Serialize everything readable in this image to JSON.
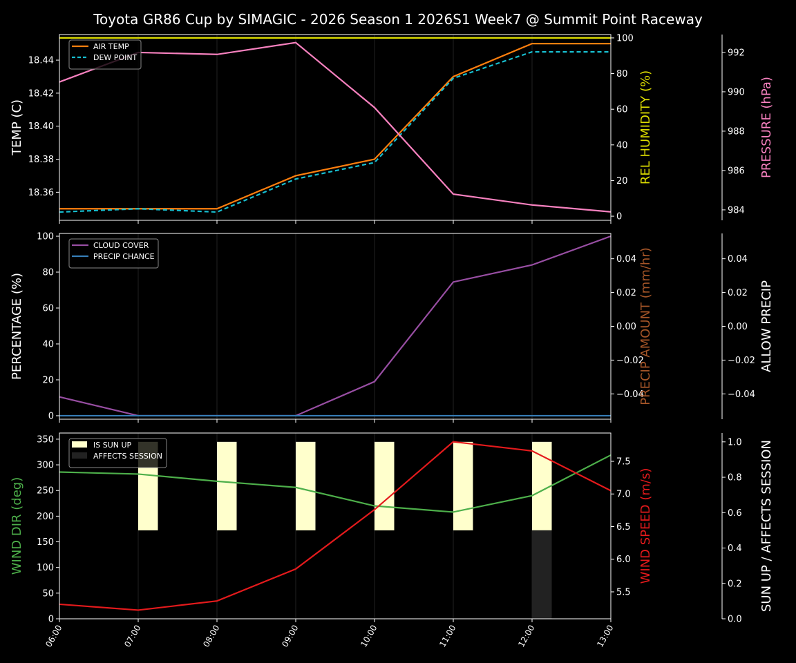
{
  "title": "Toyota GR86 Cup by SIMAGIC - 2026 Season 1 2026S1 Week7 @ Summit Point Raceway",
  "colors": {
    "background": "#000000",
    "air_temp": "#ff7f0e",
    "dew_point": "#17becf",
    "humidity": "#dddd00",
    "pressure": "#f781bf",
    "cloud": "#984ea3",
    "precip_chance": "#377eb8",
    "precip_amount_label": "#a65628",
    "wind_dir": "#4daf4a",
    "wind_speed": "#e41a1c",
    "sun_up": "#ffffcc",
    "affects_session": "#222222"
  },
  "chart_data": [
    {
      "type": "line",
      "x": [
        "06:00",
        "07:00",
        "08:00",
        "09:00",
        "10:00",
        "11:00",
        "12:00",
        "13:00"
      ],
      "axes": {
        "left": {
          "label": "TEMP (C)",
          "ylim": [
            18.343,
            18.4555
          ],
          "ticks": [
            18.36,
            18.38,
            18.4,
            18.42,
            18.44
          ],
          "tick_labels": [
            "18.36",
            "18.38",
            "18.40",
            "18.42",
            "18.44"
          ]
        },
        "right1": {
          "label": "REL HUMIDITY (%)",
          "ylim": [
            -2.3,
            101.9
          ],
          "ticks": [
            0,
            20,
            40,
            60,
            80,
            100
          ],
          "tick_labels": [
            "0",
            "20",
            "40",
            "60",
            "80",
            "100"
          ]
        },
        "right2": {
          "label": "PRESSURE (hPa)",
          "ylim": [
            983.47,
            992.91
          ],
          "ticks": [
            984,
            986,
            988,
            990,
            992
          ],
          "tick_labels": [
            "984",
            "986",
            "988",
            "990",
            "992"
          ]
        }
      },
      "series": [
        {
          "name": "AIR TEMP",
          "axis": "left",
          "style": "solid",
          "values": [
            18.35,
            18.35,
            18.35,
            18.37,
            18.38,
            18.43,
            18.45,
            18.45
          ]
        },
        {
          "name": "DEW POINT",
          "axis": "left",
          "style": "dashed",
          "values": [
            18.348,
            18.35,
            18.348,
            18.368,
            18.378,
            18.429,
            18.445,
            18.445
          ]
        },
        {
          "axis": "right1",
          "style": "solid",
          "values": [
            100,
            100,
            100,
            100,
            100,
            100,
            100,
            100
          ]
        },
        {
          "axis": "right2",
          "style": "solid",
          "values": [
            990.5,
            992.0,
            991.9,
            992.5,
            989.2,
            984.8,
            984.25,
            983.9
          ]
        }
      ],
      "legend": "top-left",
      "grid": "vertical"
    },
    {
      "type": "line",
      "x": [
        "06:00",
        "07:00",
        "08:00",
        "09:00",
        "10:00",
        "11:00",
        "12:00",
        "13:00"
      ],
      "axes": {
        "left": {
          "label": "PERCENTAGE (%)",
          "ylim": [
            -1.94,
            101.55
          ],
          "ticks": [
            0,
            20,
            40,
            60,
            80,
            100
          ],
          "tick_labels": [
            "0",
            "20",
            "40",
            "60",
            "80",
            "100"
          ]
        },
        "right1": {
          "label": "PRECIP AMOUNT (mm/hr)",
          "ylim": [
            -0.055,
            0.055
          ],
          "ticks": [
            -0.04,
            -0.02,
            0,
            0.02,
            0.04
          ],
          "tick_labels": [
            "−0.04",
            "−0.02",
            "0.00",
            "0.02",
            "0.04"
          ]
        },
        "right2": {
          "label": "ALLOW PRECIP",
          "ylim": [
            -0.055,
            0.055
          ],
          "ticks": [
            -0.04,
            -0.02,
            0,
            0.02,
            0.04
          ],
          "tick_labels": [
            "−0.04",
            "−0.02",
            "0.00",
            "0.02",
            "0.04"
          ]
        }
      },
      "series": [
        {
          "name": "CLOUD COVER",
          "axis": "left",
          "style": "solid",
          "values": [
            10.5,
            0,
            0,
            0,
            19,
            74.5,
            84,
            100
          ]
        },
        {
          "name": "PRECIP CHANCE",
          "axis": "left",
          "style": "solid",
          "values": [
            0,
            0,
            0,
            0,
            0,
            0,
            0,
            0
          ]
        }
      ],
      "legend": "top-left",
      "grid": "vertical"
    },
    {
      "type": "line+bar",
      "x": [
        "06:00",
        "07:00",
        "08:00",
        "09:00",
        "10:00",
        "11:00",
        "12:00",
        "13:00"
      ],
      "axes": {
        "left": {
          "label": "WIND DIR (deg)",
          "ylim": [
            0,
            362
          ],
          "ticks": [
            0,
            50,
            100,
            150,
            200,
            250,
            300,
            350
          ],
          "tick_labels": [
            "0",
            "50",
            "100",
            "150",
            "200",
            "250",
            "300",
            "350"
          ]
        },
        "right1": {
          "label": "WIND SPEED (m/s)",
          "ylim": [
            5.087,
            7.934
          ],
          "ticks": [
            5.5,
            6.0,
            6.5,
            7.0,
            7.5
          ],
          "tick_labels": [
            "5.5",
            "6.0",
            "6.5",
            "7.0",
            "7.5"
          ]
        },
        "right2": {
          "label": "SUN UP / AFFECTS SESSION",
          "ylim": [
            0,
            1.05
          ],
          "ticks": [
            0,
            0.2,
            0.4,
            0.6,
            0.8,
            1.0
          ],
          "tick_labels": [
            "0.0",
            "0.2",
            "0.4",
            "0.6",
            "0.8",
            "1.0"
          ]
        }
      },
      "series": [
        {
          "axis": "left",
          "style": "solid",
          "values": [
            286,
            282,
            268,
            256,
            220,
            208,
            240,
            319
          ]
        },
        {
          "axis": "right1",
          "style": "solid",
          "values": [
            5.31,
            5.22,
            5.36,
            5.85,
            6.76,
            7.8,
            7.66,
            7.05
          ]
        }
      ],
      "bars": [
        {
          "name": "IS SUN UP",
          "axis": "right2",
          "values": [
            0,
            1,
            1,
            1,
            1,
            1,
            1,
            0
          ]
        },
        {
          "name": "AFFECTS SESSION",
          "axis": "right2",
          "values": [
            0,
            0,
            0,
            0,
            0,
            0,
            1,
            0
          ]
        }
      ],
      "legend": "top-left",
      "grid": "vertical"
    }
  ]
}
